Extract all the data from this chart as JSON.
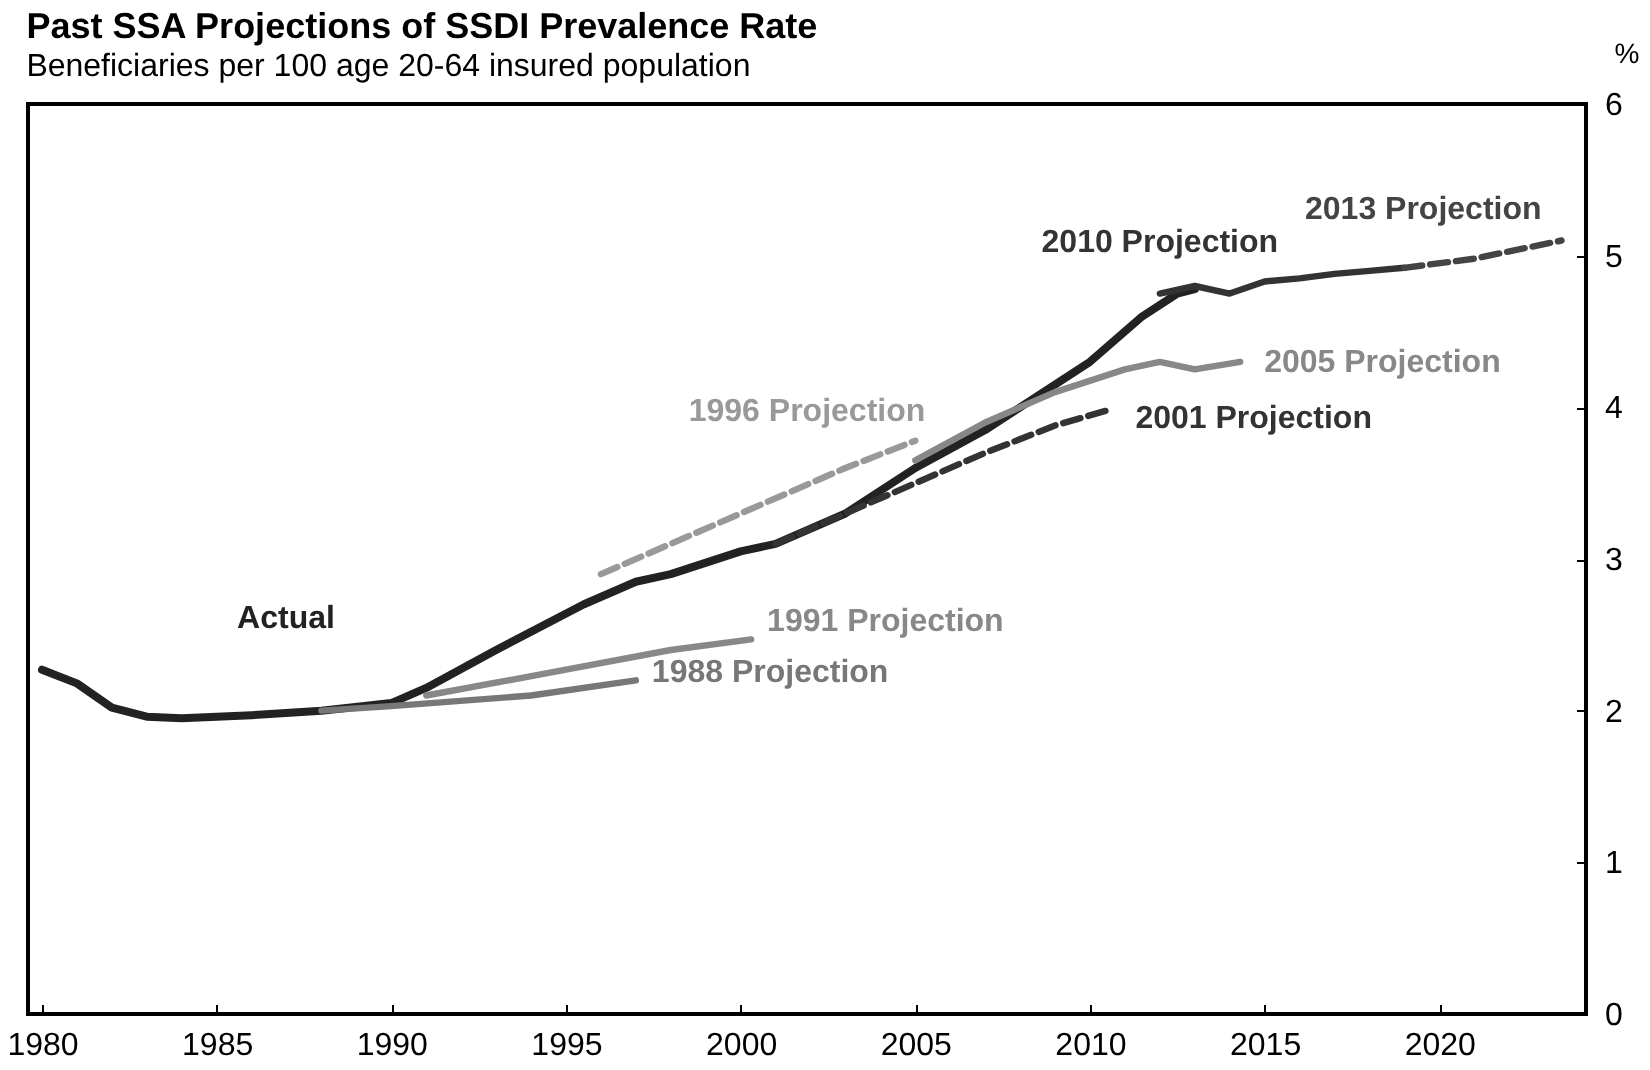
{
  "chart_data": {
    "type": "line",
    "title": "Past SSA Projections of SSDI Prevalence Rate",
    "subtitle": "Beneficiaries per 100 age 20-64 insured population",
    "ylabel": "%",
    "xlim": [
      1979.6,
      2024.2
    ],
    "xticks": [
      1980,
      1985,
      1990,
      1995,
      2000,
      2005,
      2010,
      2015,
      2020
    ],
    "ylim": [
      0,
      6
    ],
    "yticks": [
      0,
      1,
      2,
      3,
      4,
      5,
      6
    ],
    "grid": false,
    "marker": "none",
    "series": [
      {
        "name": "Actual",
        "color": "#222222",
        "x": [
          1980,
          1981,
          1982,
          1983,
          1984,
          1986,
          1988,
          1990,
          1991,
          1993,
          1995.5,
          1997,
          1998,
          2000,
          2001,
          2003,
          2005,
          2007,
          2008,
          2010,
          2011.5,
          2012.5,
          2013
        ],
        "values": [
          2.27,
          2.18,
          2.02,
          1.96,
          1.95,
          1.97,
          2.0,
          2.05,
          2.15,
          2.4,
          2.7,
          2.85,
          2.9,
          3.05,
          3.1,
          3.3,
          3.6,
          3.85,
          4.0,
          4.3,
          4.6,
          4.75,
          4.78
        ]
      },
      {
        "name": "1988 Projection",
        "color": "#777777",
        "x": [
          1988,
          1990,
          1994,
          1997
        ],
        "values": [
          2.0,
          2.03,
          2.1,
          2.2
        ]
      },
      {
        "name": "1991 Projection",
        "color": "#888888",
        "x": [
          1991,
          1995,
          1998,
          2000.3
        ],
        "values": [
          2.1,
          2.27,
          2.4,
          2.47
        ]
      },
      {
        "name": "1996 Projection",
        "color": "#999999",
        "line_style": "dashed",
        "x": [
          1996,
          1998,
          2000,
          2003,
          2005
        ],
        "values": [
          2.9,
          3.1,
          3.3,
          3.6,
          3.78
        ]
      },
      {
        "name": "2001 Projection",
        "color": "#333333",
        "line_style": "dashed",
        "x": [
          2001,
          2003,
          2005,
          2007,
          2009,
          2010.5
        ],
        "values": [
          3.1,
          3.3,
          3.5,
          3.7,
          3.88,
          3.98
        ]
      },
      {
        "name": "2005 Projection",
        "color": "#888888",
        "x": [
          2005,
          2007,
          2009,
          2011,
          2012,
          2013,
          2014.3
        ],
        "values": [
          3.65,
          3.9,
          4.1,
          4.25,
          4.3,
          4.25,
          4.3
        ]
      },
      {
        "name": "2010 Projection",
        "color": "#333333",
        "x": [
          2012,
          2013,
          2014,
          2015,
          2016,
          2017,
          2018,
          2019
        ],
        "values": [
          4.75,
          4.8,
          4.75,
          4.83,
          4.85,
          4.88,
          4.9,
          4.92
        ]
      },
      {
        "name": "2013 Projection",
        "color": "#444444",
        "line_style": "dashed",
        "x": [
          2019,
          2021,
          2023.5
        ],
        "values": [
          4.92,
          4.98,
          5.1
        ]
      }
    ]
  }
}
